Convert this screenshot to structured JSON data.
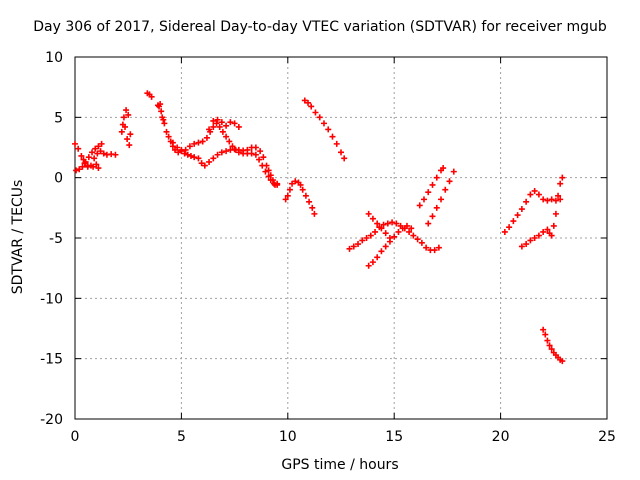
{
  "chart_data": {
    "type": "scatter",
    "title": "Day 306 of 2017, Sidereal Day-to-day VTEC variation (SDTVAR) for receiver mgub",
    "xlabel": "GPS time / hours",
    "ylabel": "SDTVAR / TECUs",
    "xlim": [
      0,
      25
    ],
    "ylim": [
      -20,
      10
    ],
    "xticks": [
      "0",
      "5",
      "10",
      "15",
      "20",
      "25"
    ],
    "yticks": [
      "10",
      "5",
      "0",
      "-5",
      "-10",
      "-15",
      "-20"
    ],
    "grid": true,
    "legend": "none",
    "color": "#ff0000",
    "marker": "plus",
    "series": [
      {
        "points": [
          [
            0.0,
            2.8
          ],
          [
            0.15,
            2.4
          ],
          [
            0.3,
            1.8
          ],
          [
            0.45,
            1.2
          ],
          [
            0.6,
            0.9
          ],
          [
            0.75,
            1.0
          ],
          [
            0.9,
            1.6
          ],
          [
            1.05,
            2.0
          ],
          [
            1.2,
            2.2
          ],
          [
            1.35,
            2.0
          ],
          [
            1.5,
            1.9
          ],
          [
            1.7,
            1.95
          ],
          [
            1.9,
            1.9
          ],
          [
            0.05,
            0.6
          ],
          [
            0.2,
            0.7
          ],
          [
            0.35,
            0.9
          ],
          [
            0.5,
            1.3
          ],
          [
            0.65,
            1.7
          ],
          [
            0.8,
            2.1
          ],
          [
            0.95,
            2.4
          ],
          [
            1.1,
            2.6
          ],
          [
            1.25,
            2.8
          ],
          [
            0.4,
            1.5
          ],
          [
            0.6,
            1.0
          ],
          [
            0.85,
            0.9
          ],
          [
            1.0,
            1.1
          ],
          [
            1.1,
            0.8
          ],
          [
            2.2,
            3.8
          ],
          [
            2.25,
            4.4
          ],
          [
            2.3,
            5.0
          ],
          [
            2.35,
            4.2
          ],
          [
            2.4,
            5.6
          ],
          [
            2.45,
            3.2
          ],
          [
            2.5,
            5.2
          ],
          [
            2.55,
            2.7
          ],
          [
            2.6,
            3.6
          ],
          [
            3.4,
            7.0
          ],
          [
            3.5,
            6.9
          ],
          [
            3.6,
            6.7
          ],
          [
            3.9,
            6.0
          ],
          [
            3.95,
            5.9
          ],
          [
            4.0,
            6.1
          ],
          [
            4.05,
            5.5
          ],
          [
            4.1,
            5.0
          ],
          [
            4.15,
            4.8
          ],
          [
            4.2,
            4.5
          ],
          [
            4.3,
            3.8
          ],
          [
            4.4,
            3.4
          ],
          [
            4.5,
            3.0
          ],
          [
            4.6,
            2.6
          ],
          [
            4.7,
            2.3
          ],
          [
            4.85,
            2.1
          ],
          [
            5.0,
            2.2
          ],
          [
            5.15,
            2.0
          ],
          [
            5.3,
            1.9
          ],
          [
            5.45,
            1.8
          ],
          [
            5.6,
            1.7
          ],
          [
            4.6,
            2.9
          ],
          [
            4.8,
            2.5
          ],
          [
            5.0,
            2.3
          ],
          [
            5.2,
            2.3
          ],
          [
            5.4,
            2.6
          ],
          [
            5.6,
            2.8
          ],
          [
            5.8,
            2.9
          ],
          [
            6.0,
            3.0
          ],
          [
            6.2,
            3.3
          ],
          [
            6.35,
            3.8
          ],
          [
            6.5,
            4.2
          ],
          [
            6.65,
            4.5
          ],
          [
            6.8,
            4.2
          ],
          [
            6.95,
            3.8
          ],
          [
            7.1,
            3.4
          ],
          [
            7.25,
            3.0
          ],
          [
            7.4,
            2.6
          ],
          [
            7.55,
            2.3
          ],
          [
            7.7,
            2.1
          ],
          [
            7.9,
            2.0
          ],
          [
            8.1,
            2.0
          ],
          [
            8.3,
            2.0
          ],
          [
            8.5,
            1.9
          ],
          [
            8.65,
            1.5
          ],
          [
            8.8,
            1.0
          ],
          [
            8.95,
            0.5
          ],
          [
            9.1,
            0.1
          ],
          [
            9.2,
            -0.2
          ],
          [
            9.35,
            -0.5
          ],
          [
            9.5,
            -0.5
          ],
          [
            5.8,
            1.6
          ],
          [
            5.95,
            1.2
          ],
          [
            6.1,
            1.0
          ],
          [
            6.3,
            1.3
          ],
          [
            6.5,
            1.6
          ],
          [
            6.7,
            1.9
          ],
          [
            6.9,
            2.1
          ],
          [
            7.1,
            2.2
          ],
          [
            7.3,
            2.3
          ],
          [
            7.5,
            2.35
          ],
          [
            7.7,
            2.3
          ],
          [
            7.9,
            2.25
          ],
          [
            8.1,
            2.3
          ],
          [
            8.3,
            2.5
          ],
          [
            8.5,
            2.5
          ],
          [
            8.7,
            2.2
          ],
          [
            8.85,
            1.7
          ],
          [
            9.0,
            1.0
          ],
          [
            9.1,
            0.6
          ],
          [
            9.2,
            0.2
          ],
          [
            9.3,
            -0.2
          ],
          [
            9.4,
            -0.6
          ],
          [
            9.5,
            -0.6
          ],
          [
            6.3,
            4.0
          ],
          [
            6.5,
            4.7
          ],
          [
            6.7,
            4.8
          ],
          [
            6.9,
            4.6
          ],
          [
            7.1,
            4.3
          ],
          [
            7.3,
            4.6
          ],
          [
            7.5,
            4.5
          ],
          [
            7.7,
            4.2
          ],
          [
            9.9,
            -1.8
          ],
          [
            10.0,
            -1.5
          ],
          [
            10.1,
            -1.0
          ],
          [
            10.2,
            -0.5
          ],
          [
            10.35,
            -0.3
          ],
          [
            10.5,
            -0.4
          ],
          [
            10.6,
            -0.6
          ],
          [
            10.7,
            -1.0
          ],
          [
            10.85,
            -1.5
          ],
          [
            11.0,
            -2.0
          ],
          [
            11.15,
            -2.5
          ],
          [
            11.25,
            -3.0
          ],
          [
            10.8,
            6.4
          ],
          [
            10.95,
            6.2
          ],
          [
            11.1,
            5.9
          ],
          [
            11.3,
            5.4
          ],
          [
            11.5,
            5.0
          ],
          [
            11.7,
            4.5
          ],
          [
            11.9,
            4.0
          ],
          [
            12.1,
            3.4
          ],
          [
            12.3,
            2.8
          ],
          [
            12.5,
            2.1
          ],
          [
            12.65,
            1.6
          ],
          [
            12.9,
            -5.9
          ],
          [
            13.1,
            -5.7
          ],
          [
            13.3,
            -5.5
          ],
          [
            13.5,
            -5.2
          ],
          [
            13.7,
            -5.0
          ],
          [
            13.9,
            -4.8
          ],
          [
            14.1,
            -4.5
          ],
          [
            14.3,
            -4.1
          ],
          [
            14.5,
            -3.9
          ],
          [
            14.7,
            -3.8
          ],
          [
            14.9,
            -3.7
          ],
          [
            15.1,
            -3.8
          ],
          [
            15.3,
            -4.0
          ],
          [
            15.5,
            -4.2
          ],
          [
            15.7,
            -4.5
          ],
          [
            15.9,
            -4.8
          ],
          [
            16.1,
            -5.1
          ],
          [
            16.3,
            -5.4
          ],
          [
            16.5,
            -5.8
          ],
          [
            16.7,
            -6.0
          ],
          [
            16.9,
            -6.0
          ],
          [
            17.1,
            -5.8
          ],
          [
            13.8,
            -7.3
          ],
          [
            14.0,
            -7.0
          ],
          [
            14.2,
            -6.6
          ],
          [
            14.4,
            -6.1
          ],
          [
            14.6,
            -5.7
          ],
          [
            14.8,
            -5.3
          ],
          [
            15.0,
            -4.9
          ],
          [
            15.2,
            -4.5
          ],
          [
            15.4,
            -4.2
          ],
          [
            15.6,
            -4.0
          ],
          [
            15.8,
            -4.2
          ],
          [
            13.8,
            -3.0
          ],
          [
            14.0,
            -3.4
          ],
          [
            14.2,
            -3.8
          ],
          [
            14.4,
            -4.2
          ],
          [
            14.6,
            -4.6
          ],
          [
            14.8,
            -5.0
          ],
          [
            16.2,
            -2.3
          ],
          [
            16.4,
            -1.8
          ],
          [
            16.6,
            -1.2
          ],
          [
            16.8,
            -0.6
          ],
          [
            17.0,
            0.0
          ],
          [
            17.2,
            0.6
          ],
          [
            17.3,
            0.8
          ],
          [
            16.6,
            -3.8
          ],
          [
            16.8,
            -3.2
          ],
          [
            17.0,
            -2.5
          ],
          [
            17.2,
            -1.8
          ],
          [
            17.4,
            -1.0
          ],
          [
            17.6,
            -0.3
          ],
          [
            17.8,
            0.5
          ],
          [
            20.2,
            -4.5
          ],
          [
            20.4,
            -4.1
          ],
          [
            20.6,
            -3.6
          ],
          [
            20.8,
            -3.1
          ],
          [
            21.0,
            -2.6
          ],
          [
            21.2,
            -2.0
          ],
          [
            21.4,
            -1.4
          ],
          [
            21.6,
            -1.1
          ],
          [
            21.8,
            -1.4
          ],
          [
            22.0,
            -1.8
          ],
          [
            22.2,
            -1.9
          ],
          [
            22.4,
            -1.8
          ],
          [
            22.6,
            -1.9
          ],
          [
            22.8,
            -1.8
          ],
          [
            21.0,
            -5.7
          ],
          [
            21.2,
            -5.5
          ],
          [
            21.4,
            -5.2
          ],
          [
            21.6,
            -5.0
          ],
          [
            21.8,
            -4.8
          ],
          [
            22.0,
            -4.5
          ],
          [
            22.2,
            -4.3
          ],
          [
            22.3,
            -4.6
          ],
          [
            22.4,
            -4.8
          ],
          [
            22.5,
            -4.0
          ],
          [
            22.6,
            -3.0
          ],
          [
            22.7,
            -1.5
          ],
          [
            22.8,
            -0.5
          ],
          [
            22.9,
            0.0
          ],
          [
            22.0,
            -12.6
          ],
          [
            22.1,
            -13.0
          ],
          [
            22.2,
            -13.5
          ],
          [
            22.3,
            -13.9
          ],
          [
            22.4,
            -14.2
          ],
          [
            22.5,
            -14.5
          ],
          [
            22.6,
            -14.7
          ],
          [
            22.7,
            -14.9
          ],
          [
            22.8,
            -15.1
          ],
          [
            22.9,
            -15.2
          ]
        ]
      }
    ]
  }
}
